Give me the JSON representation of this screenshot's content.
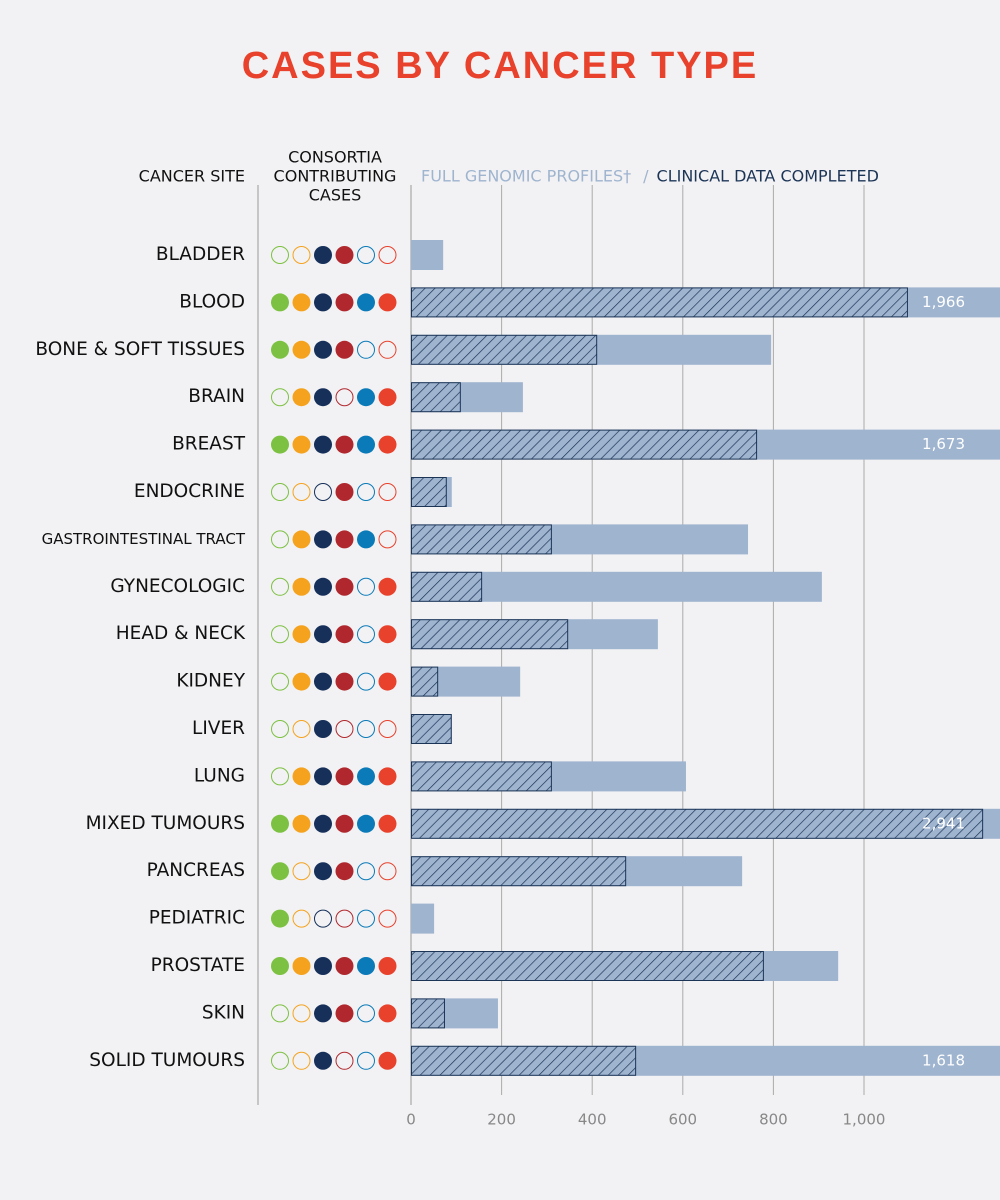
{
  "chart_data": {
    "type": "bar",
    "orientation": "horizontal",
    "title": "CASES BY CANCER TYPE",
    "category_header": "CANCER SITE",
    "consortia_header": [
      "CONSORTIA",
      "CONTRIBUTING",
      "CASES"
    ],
    "legend_separator": "/",
    "categories": [
      "BLADDER",
      "BLOOD",
      "BONE & SOFT TISSUES",
      "BRAIN",
      "BREAST",
      "ENDOCRINE",
      "GASTROINTESTINAL TRACT",
      "GYNECOLOGIC",
      "HEAD & NECK",
      "KIDNEY",
      "LIVER",
      "LUNG",
      "MIXED TUMOURS",
      "PANCREAS",
      "PEDIATRIC",
      "PROSTATE",
      "SKIN",
      "SOLID TUMOURS"
    ],
    "series": [
      {
        "name": "FULL GENOMIC PROFILES†",
        "color": "#9fb4cf",
        "values": [
          71,
          1966,
          795,
          247,
          1673,
          90,
          744,
          907,
          545,
          241,
          90,
          607,
          2941,
          731,
          51,
          943,
          192,
          1618
        ],
        "value_labels": [
          null,
          "1,966",
          null,
          null,
          "1,673",
          null,
          null,
          null,
          null,
          null,
          null,
          null,
          "2,941",
          null,
          null,
          null,
          null,
          "1,618"
        ]
      },
      {
        "name": "CLINICAL DATA COMPLETED",
        "color": "#1c3557",
        "values": [
          null,
          1097,
          411,
          110,
          764,
          79,
          311,
          157,
          347,
          60,
          90,
          311,
          1263,
          475,
          null,
          779,
          75,
          497
        ]
      }
    ],
    "consortia": {
      "colors": [
        "#7dc142",
        "#f5a31f",
        "#16305a",
        "#b0282e",
        "#0a7ab8",
        "#e8412c"
      ],
      "filled": [
        [
          0,
          0,
          1,
          1,
          0,
          0
        ],
        [
          1,
          1,
          1,
          1,
          1,
          1
        ],
        [
          1,
          1,
          1,
          1,
          0,
          0
        ],
        [
          0,
          1,
          1,
          0,
          1,
          1
        ],
        [
          1,
          1,
          1,
          1,
          1,
          1
        ],
        [
          0,
          0,
          0,
          1,
          0,
          0
        ],
        [
          0,
          1,
          1,
          1,
          1,
          0
        ],
        [
          0,
          1,
          1,
          1,
          0,
          1
        ],
        [
          0,
          1,
          1,
          1,
          0,
          1
        ],
        [
          0,
          1,
          1,
          1,
          0,
          1
        ],
        [
          0,
          0,
          1,
          0,
          0,
          0
        ],
        [
          0,
          1,
          1,
          1,
          1,
          1
        ],
        [
          1,
          1,
          1,
          1,
          1,
          1
        ],
        [
          1,
          0,
          1,
          1,
          0,
          0
        ],
        [
          1,
          0,
          0,
          0,
          0,
          0
        ],
        [
          1,
          1,
          1,
          1,
          1,
          1
        ],
        [
          0,
          0,
          1,
          1,
          0,
          1
        ],
        [
          0,
          0,
          1,
          0,
          0,
          1
        ]
      ]
    },
    "xlim": [
      0,
      1300
    ],
    "xticks": [
      0,
      200,
      400,
      600,
      800,
      {
        "value": 1000,
        "label": "1,000"
      }
    ],
    "grid": true
  }
}
